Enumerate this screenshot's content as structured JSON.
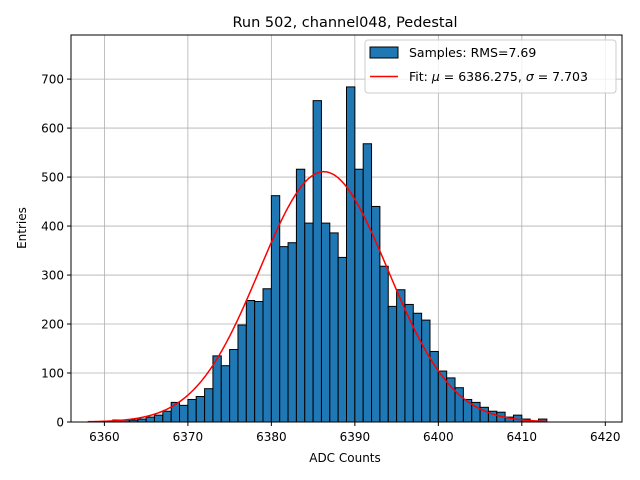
{
  "chart_data": {
    "type": "histogram",
    "title": "Run 502, channel048, Pedestal",
    "xlabel": "ADC Counts",
    "ylabel": "Entries",
    "xlim": [
      6356,
      6422
    ],
    "ylim": [
      0,
      790
    ],
    "xticks": [
      6360,
      6370,
      6380,
      6390,
      6400,
      6410,
      6420
    ],
    "yticks": [
      0,
      100,
      200,
      300,
      400,
      500,
      600,
      700
    ],
    "grid": true,
    "legend_position": "top-right",
    "bin_width": 1,
    "bins": [
      [
        6361,
        4
      ],
      [
        6362,
        4
      ],
      [
        6363,
        4
      ],
      [
        6364,
        6
      ],
      [
        6365,
        10
      ],
      [
        6366,
        14
      ],
      [
        6367,
        22
      ],
      [
        6368,
        40
      ],
      [
        6369,
        34
      ],
      [
        6370,
        46
      ],
      [
        6371,
        52
      ],
      [
        6372,
        68
      ],
      [
        6373,
        135
      ],
      [
        6374,
        115
      ],
      [
        6375,
        148
      ],
      [
        6376,
        198
      ],
      [
        6377,
        248
      ],
      [
        6378,
        246
      ],
      [
        6379,
        272
      ],
      [
        6380,
        462
      ],
      [
        6381,
        358
      ],
      [
        6382,
        366
      ],
      [
        6383,
        516
      ],
      [
        6384,
        406
      ],
      [
        6385,
        656
      ],
      [
        6386,
        406
      ],
      [
        6387,
        386
      ],
      [
        6388,
        336
      ],
      [
        6389,
        684
      ],
      [
        6390,
        516
      ],
      [
        6391,
        568
      ],
      [
        6392,
        440
      ],
      [
        6393,
        318
      ],
      [
        6394,
        236
      ],
      [
        6395,
        270
      ],
      [
        6396,
        240
      ],
      [
        6397,
        222
      ],
      [
        6398,
        208
      ],
      [
        6399,
        144
      ],
      [
        6400,
        104
      ],
      [
        6401,
        90
      ],
      [
        6402,
        70
      ],
      [
        6403,
        46
      ],
      [
        6404,
        40
      ],
      [
        6405,
        30
      ],
      [
        6406,
        22
      ],
      [
        6407,
        20
      ],
      [
        6408,
        10
      ],
      [
        6409,
        14
      ],
      [
        6410,
        6
      ],
      [
        6411,
        2
      ],
      [
        6412,
        6
      ]
    ],
    "fit": {
      "mu": 6386.275,
      "sigma": 7.703,
      "amplitude": 511,
      "x_range": [
        6358,
        6413
      ]
    },
    "legend": [
      {
        "label": "Samples: RMS=7.69",
        "kind": "patch",
        "color": "#1f77b4"
      },
      {
        "label_prefix": "Fit: ",
        "label_mu_sym": "μ",
        "label_mu": " = 6386.275, ",
        "label_sigma_sym": "σ",
        "label_sigma": " = 7.703",
        "kind": "line",
        "color": "#ff0000"
      }
    ],
    "colors": {
      "bar": "#1f77b4",
      "bar_edge": "#000000",
      "fit": "#ff0000",
      "grid": "#b0b0b0"
    }
  }
}
